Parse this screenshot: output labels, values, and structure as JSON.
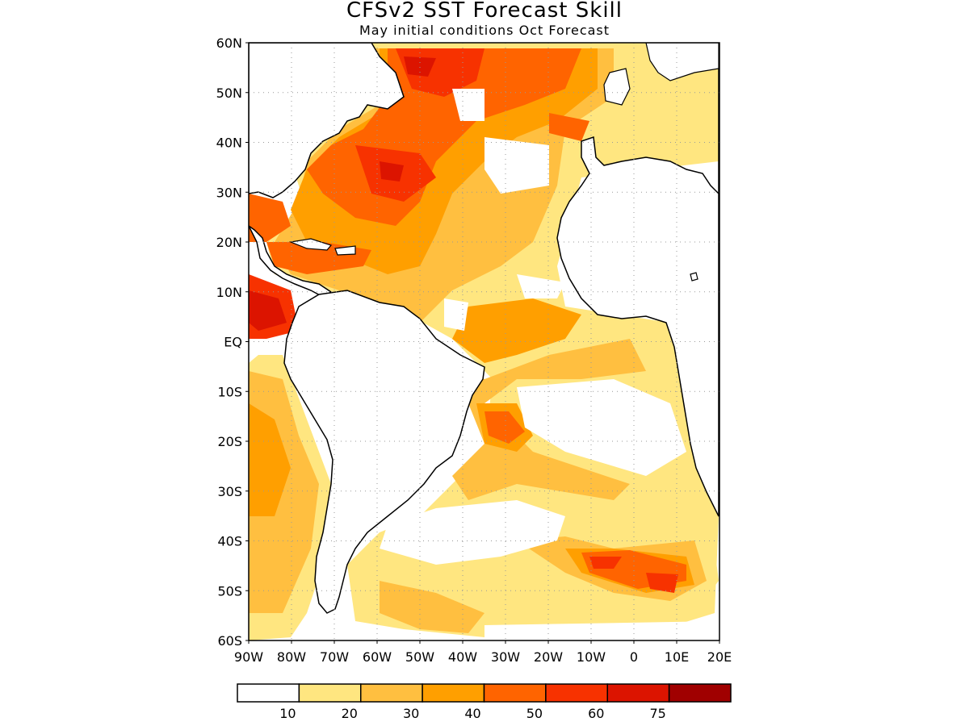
{
  "title": "CFSv2 SST Forecast Skill",
  "subtitle": "May initial conditions  Oct Forecast",
  "map": {
    "lon_range": [
      -90,
      20
    ],
    "lat_range": [
      -60,
      60
    ],
    "lat_ticks": [
      {
        "value": 60,
        "label": "60N"
      },
      {
        "value": 50,
        "label": "50N"
      },
      {
        "value": 40,
        "label": "40N"
      },
      {
        "value": 30,
        "label": "30N"
      },
      {
        "value": 20,
        "label": "20N"
      },
      {
        "value": 10,
        "label": "10N"
      },
      {
        "value": 0,
        "label": "EQ"
      },
      {
        "value": -10,
        "label": "10S"
      },
      {
        "value": -20,
        "label": "20S"
      },
      {
        "value": -30,
        "label": "30S"
      },
      {
        "value": -40,
        "label": "40S"
      },
      {
        "value": -50,
        "label": "50S"
      },
      {
        "value": -60,
        "label": "60S"
      }
    ],
    "lon_ticks": [
      {
        "value": -90,
        "label": "90W"
      },
      {
        "value": -80,
        "label": "80W"
      },
      {
        "value": -70,
        "label": "70W"
      },
      {
        "value": -60,
        "label": "60W"
      },
      {
        "value": -50,
        "label": "50W"
      },
      {
        "value": -40,
        "label": "40W"
      },
      {
        "value": -30,
        "label": "30W"
      },
      {
        "value": -20,
        "label": "20W"
      },
      {
        "value": -10,
        "label": "10W"
      },
      {
        "value": 0,
        "label": "0"
      },
      {
        "value": 10,
        "label": "10E"
      },
      {
        "value": 20,
        "label": "20E"
      }
    ],
    "grid": true
  },
  "colorbar": {
    "bins": [
      {
        "color": "#ffffff"
      },
      {
        "color": "#ffe680"
      },
      {
        "color": "#ffbf40"
      },
      {
        "color": "#ff9f00"
      },
      {
        "color": "#ff6400"
      },
      {
        "color": "#f73200"
      },
      {
        "color": "#dc1400"
      },
      {
        "color": "#a00000"
      }
    ],
    "labels": [
      "10",
      "20",
      "30",
      "40",
      "50",
      "60",
      "75"
    ]
  }
}
